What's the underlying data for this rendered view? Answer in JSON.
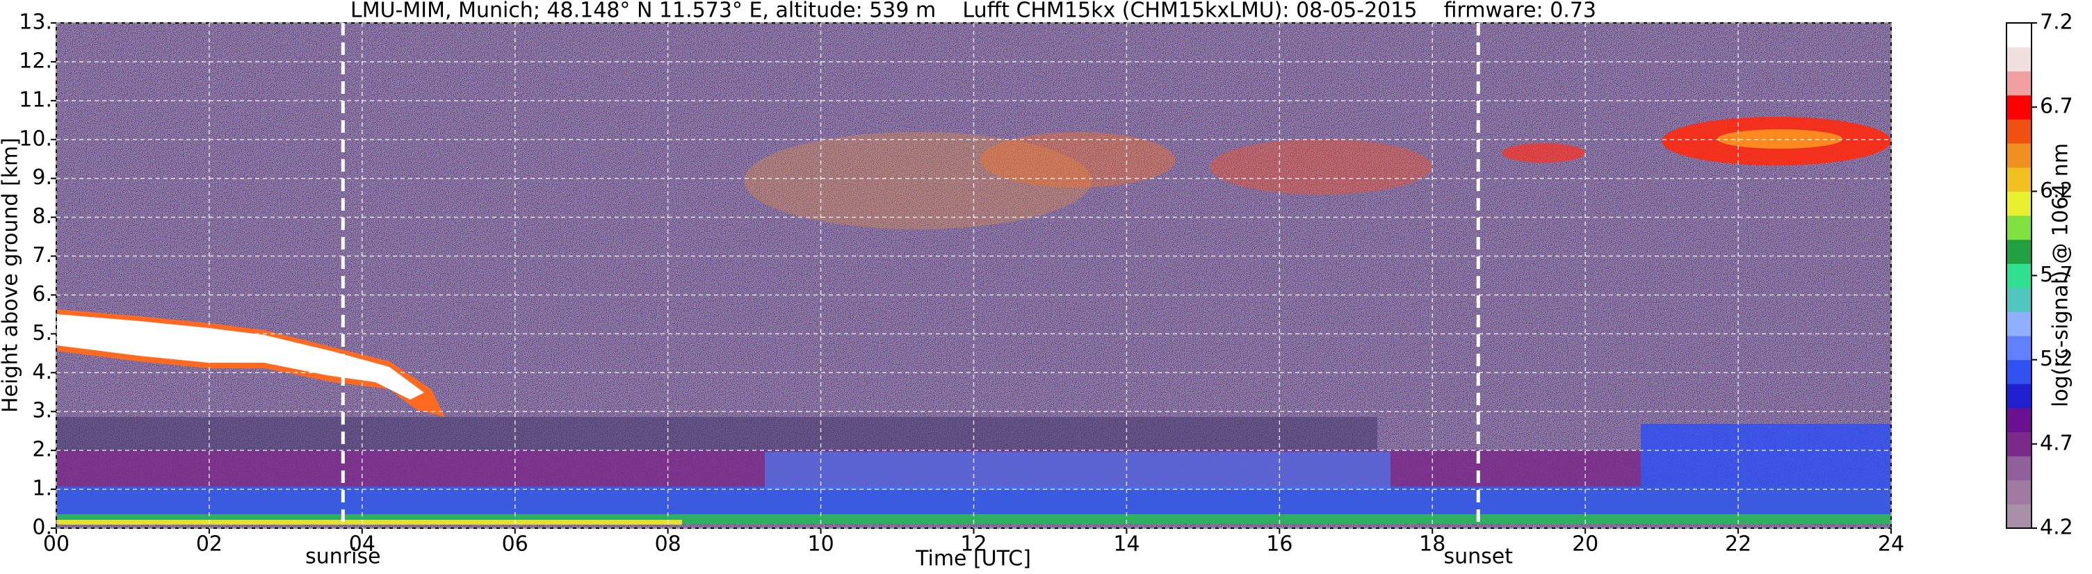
{
  "chart_data": {
    "type": "heatmap",
    "title": "LMU-MIM, Munich; 48.148° N 11.573° E, altitude: 539 m    Lufft CHM15kx (CHM15kxLMU): 08-05-2015    firmware: 0.73",
    "x_label": "Time [UTC]",
    "y_label": "Height above ground [km]",
    "colorbar_label": "log(rc-signal) @ 1064 nm",
    "xlim": [
      0,
      24
    ],
    "xticks": [
      {
        "value": 0,
        "label": "00"
      },
      {
        "value": 2,
        "label": "02"
      },
      {
        "value": 4,
        "label": "04"
      },
      {
        "value": 6,
        "label": "06"
      },
      {
        "value": 8,
        "label": "08"
      },
      {
        "value": 10,
        "label": "10"
      },
      {
        "value": 12,
        "label": "12"
      },
      {
        "value": 14,
        "label": "14"
      },
      {
        "value": 16,
        "label": "16"
      },
      {
        "value": 18,
        "label": "18"
      },
      {
        "value": 20,
        "label": "20"
      },
      {
        "value": 22,
        "label": "22"
      },
      {
        "value": 24,
        "label": "24"
      }
    ],
    "ylim": [
      0,
      13
    ],
    "yticks": [
      {
        "value": 0,
        "label": "0."
      },
      {
        "value": 1,
        "label": "1."
      },
      {
        "value": 2,
        "label": "2."
      },
      {
        "value": 3,
        "label": "3."
      },
      {
        "value": 4,
        "label": "4."
      },
      {
        "value": 5,
        "label": "5."
      },
      {
        "value": 6,
        "label": "6."
      },
      {
        "value": 7,
        "label": "7."
      },
      {
        "value": 8,
        "label": "8."
      },
      {
        "value": 9,
        "label": "9."
      },
      {
        "value": 10,
        "label": "10."
      },
      {
        "value": 11,
        "label": "11."
      },
      {
        "value": 12,
        "label": "12."
      },
      {
        "value": 13,
        "label": "13."
      }
    ],
    "grid": true,
    "annotations": [
      {
        "text": "sunrise",
        "x": 3.75
      },
      {
        "text": "sunset",
        "x": 18.6
      }
    ],
    "clim": [
      4.2,
      7.2
    ],
    "cticks": [
      4.2,
      4.7,
      5.2,
      5.7,
      6.2,
      6.7,
      7.2
    ],
    "colors": [
      "#a890a8",
      "#a07aa0",
      "#90609a",
      "#7a2a8a",
      "#6a1090",
      "#2020d0",
      "#3050f0",
      "#6080ff",
      "#90b0ff",
      "#50c8c0",
      "#30e090",
      "#20a040",
      "#80e040",
      "#e8f030",
      "#f0c020",
      "#f09020",
      "#f05010",
      "#ff0000",
      "#f0a0a0",
      "#f0e0e0",
      "#ffffff"
    ]
  }
}
